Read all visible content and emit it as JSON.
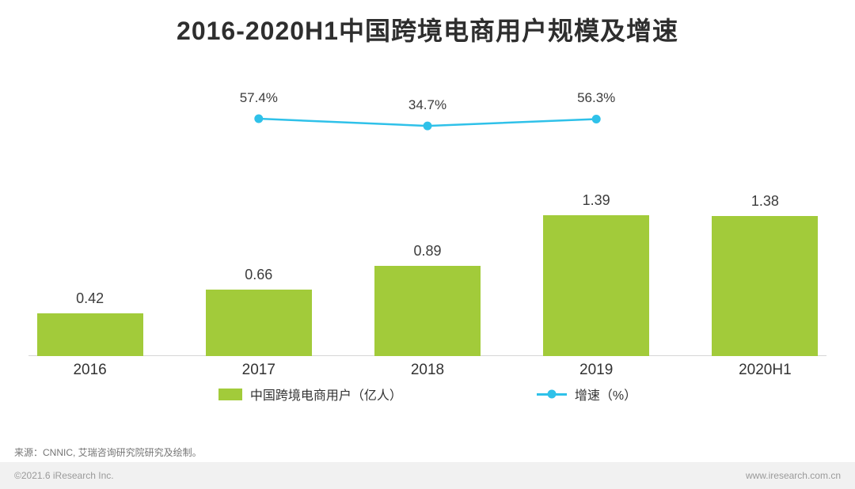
{
  "title": "2016-2020H1中国跨境电商用户规模及增速",
  "chart_data": {
    "type": "bar+line",
    "title": "2016-2020H1中国跨境电商用户规模及增速",
    "categories": [
      "2016",
      "2017",
      "2018",
      "2019",
      "2020H1"
    ],
    "series": [
      {
        "name": "中国跨境电商用户（亿人）",
        "type": "bar",
        "values": [
          0.42,
          0.66,
          0.89,
          1.39,
          1.38
        ],
        "value_labels": [
          "0.42",
          "0.66",
          "0.89",
          "1.39",
          "1.38"
        ],
        "color": "#a2cb3a"
      },
      {
        "name": "增速（%）",
        "type": "line",
        "values": [
          null,
          57.4,
          34.7,
          56.3,
          null
        ],
        "value_labels": [
          "",
          "57.4%",
          "34.7%",
          "56.3%",
          ""
        ],
        "color": "#2fc1e9"
      }
    ],
    "xlabel": "",
    "ylabel": "",
    "grid": false,
    "legend_position": "bottom"
  },
  "legend": [
    {
      "label": "中国跨境电商用户（亿人）",
      "color": "#a2cb3a",
      "type": "bar"
    },
    {
      "label": "增速（%）",
      "color": "#2fc1e9",
      "type": "line"
    }
  ],
  "source_text": "来源：CNNIC, 艾瑞咨询研究院研究及绘制。",
  "footer": {
    "copyright": "©2021.6 iResearch Inc.",
    "website": "www.iresearch.com.cn"
  }
}
